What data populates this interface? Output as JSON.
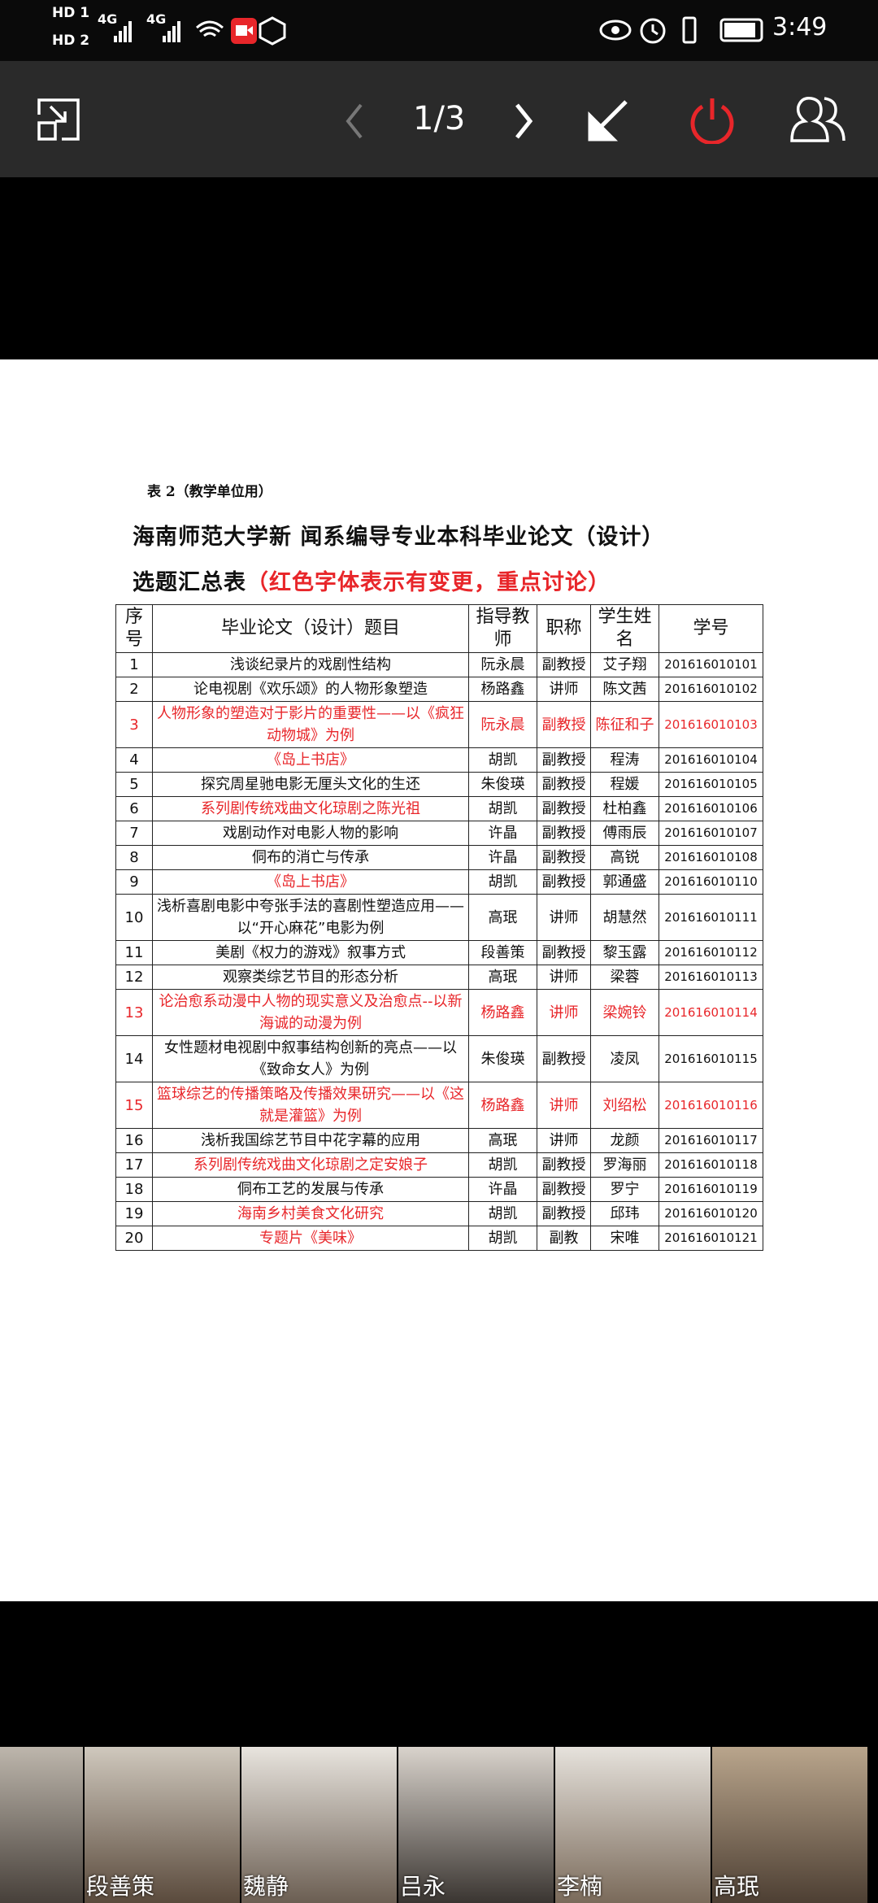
{
  "status_bar": {
    "hd1": "HD 1",
    "hd2": "HD 2",
    "net1": "4G",
    "net2": "4G",
    "time": "3:49"
  },
  "toolbar": {
    "page": "1/3"
  },
  "document": {
    "label": "表 2（教学单位用）",
    "title": "海南师范大学新 闻系编导专业本科毕业论文（设计）",
    "subtitle": "选题汇总表",
    "subtitle_note": "（红色字体表示有变更，重点讨论）",
    "subtitle_note_color": "#e8262a",
    "table": {
      "header": [
        "序号",
        "毕业论文（设计）题目",
        "指导教师",
        "职称",
        "学生姓名",
        "学号"
      ],
      "rows": [
        {
          "cells": [
            "1",
            "浅谈纪录片的戏剧性结构",
            "阮永晨",
            "副教授",
            "艾子翔",
            "201616010101"
          ],
          "color": "#111111",
          "title_color": "#111111"
        },
        {
          "cells": [
            "2",
            "论电视剧《欢乐颂》的人物形象塑造",
            "杨路鑫",
            "讲师",
            "陈文茜",
            "201616010102"
          ],
          "color": "#111111",
          "title_color": "#111111"
        },
        {
          "cells": [
            "3",
            "人物形象的塑造对于影片的重要性——以《疯狂动物城》为例",
            "阮永晨",
            "副教授",
            "陈征和子",
            "201616010103"
          ],
          "color": "#e8262a",
          "title_color": "#e8262a"
        },
        {
          "cells": [
            "4",
            "《岛上书店》",
            "胡凯",
            "副教授",
            "程涛",
            "201616010104"
          ],
          "color": "#111111",
          "title_color": "#e8262a"
        },
        {
          "cells": [
            "5",
            "探究周星驰电影无厘头文化的生还",
            "朱俊瑛",
            "副教授",
            "程媛",
            "201616010105"
          ],
          "color": "#111111",
          "title_color": "#111111"
        },
        {
          "cells": [
            "6",
            "系列剧传统戏曲文化琼剧之陈光祖",
            "胡凯",
            "副教授",
            "杜柏鑫",
            "201616010106"
          ],
          "color": "#111111",
          "title_color": "#e8262a"
        },
        {
          "cells": [
            "7",
            "戏剧动作对电影人物的影响",
            "许晶",
            "副教授",
            "傅雨辰",
            "201616010107"
          ],
          "color": "#111111",
          "title_color": "#111111"
        },
        {
          "cells": [
            "8",
            "侗布的消亡与传承",
            "许晶",
            "副教授",
            "高锐",
            "201616010108"
          ],
          "color": "#111111",
          "title_color": "#111111"
        },
        {
          "cells": [
            "9",
            "《岛上书店》",
            "胡凯",
            "副教授",
            "郭通盛",
            "201616010110"
          ],
          "color": "#111111",
          "title_color": "#e8262a"
        },
        {
          "cells": [
            "10",
            "浅析喜剧电影中夸张手法的喜剧性塑造应用——以“开心麻花”电影为例",
            "高珉",
            "讲师",
            "胡慧然",
            "201616010111"
          ],
          "color": "#111111",
          "title_color": "#111111"
        },
        {
          "cells": [
            "11",
            "美剧《权力的游戏》叙事方式",
            "段善策",
            "副教授",
            "黎玉露",
            "201616010112"
          ],
          "color": "#111111",
          "title_color": "#111111"
        },
        {
          "cells": [
            "12",
            "观察类综艺节目的形态分析",
            "高珉",
            "讲师",
            "梁蓉",
            "201616010113"
          ],
          "color": "#111111",
          "title_color": "#111111"
        },
        {
          "cells": [
            "13",
            "论治愈系动漫中人物的现实意义及治愈点--以新海诚的动漫为例",
            "杨路鑫",
            "讲师",
            "梁婉铃",
            "201616010114"
          ],
          "color": "#e8262a",
          "title_color": "#e8262a"
        },
        {
          "cells": [
            "14",
            "女性题材电视剧中叙事结构创新的亮点——以《致命女人》为例",
            "朱俊瑛",
            "副教授",
            "凌凤",
            "201616010115"
          ],
          "color": "#111111",
          "title_color": "#111111"
        },
        {
          "cells": [
            "15",
            "篮球综艺的传播策略及传播效果研究——以《这就是灌篮》为例",
            "杨路鑫",
            "讲师",
            "刘绍松",
            "201616010116"
          ],
          "color": "#e8262a",
          "title_color": "#e8262a"
        },
        {
          "cells": [
            "16",
            "浅析我国综艺节目中花字幕的应用",
            "高珉",
            "讲师",
            "龙颜",
            "201616010117"
          ],
          "color": "#111111",
          "title_color": "#111111"
        },
        {
          "cells": [
            "17",
            "系列剧传统戏曲文化琼剧之定安娘子",
            "胡凯",
            "副教授",
            "罗海丽",
            "201616010118"
          ],
          "color": "#111111",
          "title_color": "#e8262a"
        },
        {
          "cells": [
            "18",
            "侗布工艺的发展与传承",
            "许晶",
            "副教授",
            "罗宁",
            "201616010119"
          ],
          "color": "#111111",
          "title_color": "#111111"
        },
        {
          "cells": [
            "19",
            "海南乡村美食文化研究",
            "胡凯",
            "副教授",
            "邱玮",
            "201616010120"
          ],
          "color": "#111111",
          "title_color": "#e8262a"
        },
        {
          "cells": [
            "20",
            "专题片《美味》",
            "胡凯",
            "副教",
            "宋唯",
            "201616010121"
          ],
          "color": "#111111",
          "title_color": "#e8262a"
        }
      ]
    }
  },
  "participants": [
    "段善策",
    "魏静",
    "吕永",
    "李楠",
    "高珉"
  ]
}
